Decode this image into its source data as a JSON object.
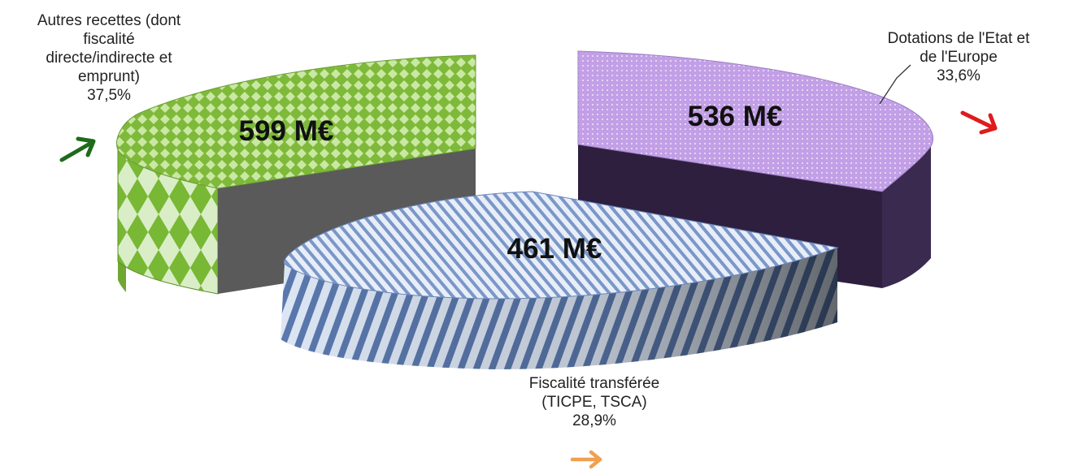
{
  "chart_data": {
    "type": "pie",
    "title": "",
    "slices": [
      {
        "label": "Autres recettes (dont\nfiscalité\ndirecte/indirecte et\nemprunt)",
        "percent": 37.5,
        "percent_text": "37,5%",
        "value": 599,
        "value_text": "599 M€",
        "trend": "up",
        "color": "#8dc63f"
      },
      {
        "label": "Dotations de l'Etat  et\nde l'Europe",
        "percent": 33.6,
        "percent_text": "33,6%",
        "value": 536,
        "value_text": "536 M€",
        "trend": "down",
        "color": "#c7a3e8"
      },
      {
        "label": "Fiscalité transférée\n(TICPE, TSCA)",
        "percent": 28.9,
        "percent_text": "28,9%",
        "value": 461,
        "value_text": "461 M€",
        "trend": "right",
        "color": "#6f8fc7"
      }
    ],
    "legend": "none",
    "style": "3d-exploded"
  },
  "colors": {
    "up_arrow": "#1e6b1a",
    "down_arrow": "#e01b1b",
    "right_arrow": "#f0a050"
  }
}
